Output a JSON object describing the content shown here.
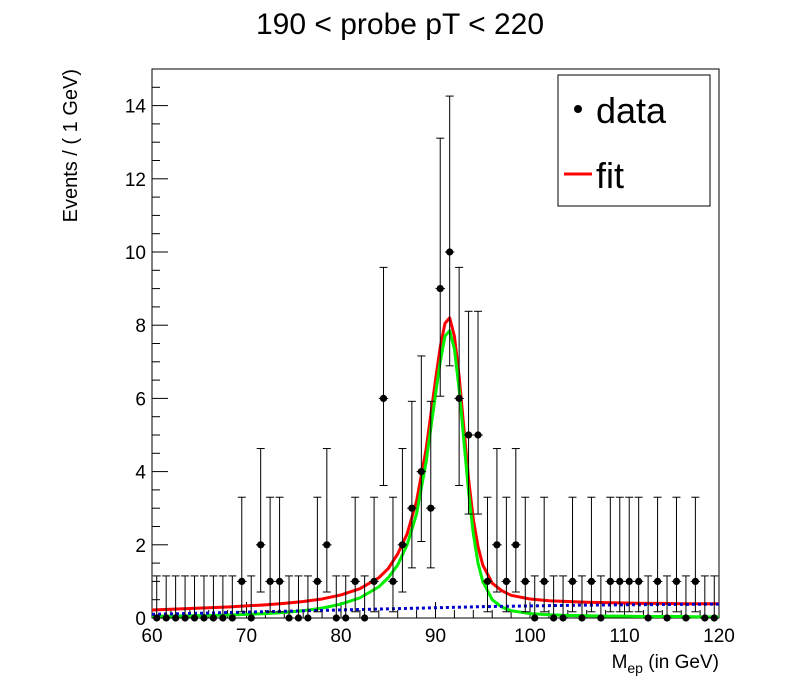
{
  "chart_data": {
    "type": "scatter",
    "title": "190 < probe pT < 220",
    "ylabel": "Events / ( 1 GeV)",
    "xlabel_main": "M",
    "xlabel_sub": "ep",
    "xlabel_suffix": " (in GeV)",
    "xlim": [
      60,
      120
    ],
    "ylim": [
      0,
      15
    ],
    "x_ticks": [
      60,
      70,
      80,
      90,
      100,
      110,
      120
    ],
    "y_ticks": [
      0,
      2,
      4,
      6,
      8,
      10,
      12,
      14
    ],
    "x_tick_labels": [
      "60",
      "70",
      "80",
      "90",
      "100",
      "110",
      "120"
    ],
    "y_tick_labels": [
      "0",
      "2",
      "4",
      "6",
      "8",
      "10",
      "12",
      "14"
    ],
    "legend": {
      "placement": "top-right",
      "entries": [
        {
          "label": "data",
          "marker": "dot"
        },
        {
          "label": "fit",
          "marker": "line",
          "color": "#ff0000"
        }
      ]
    },
    "data_points": {
      "name": "data",
      "x": [
        60.5,
        61.5,
        62.5,
        63.5,
        64.5,
        65.5,
        66.5,
        67.5,
        68.5,
        69.5,
        70.5,
        71.5,
        72.5,
        73.5,
        74.5,
        75.5,
        76.5,
        77.5,
        78.5,
        79.5,
        80.5,
        81.5,
        82.5,
        83.5,
        84.5,
        85.5,
        86.5,
        87.5,
        88.5,
        89.5,
        90.5,
        91.5,
        92.5,
        93.5,
        94.5,
        95.5,
        96.5,
        97.5,
        98.5,
        99.5,
        100.5,
        101.5,
        102.5,
        103.5,
        104.5,
        105.5,
        106.5,
        107.5,
        108.5,
        109.5,
        110.5,
        111.5,
        112.5,
        113.5,
        114.5,
        115.5,
        116.5,
        117.5,
        118.5,
        119.5
      ],
      "y": [
        0,
        0,
        0,
        0,
        0,
        0,
        0,
        0,
        0,
        1,
        0,
        2,
        1,
        1,
        0,
        0,
        0,
        1,
        2,
        0,
        0,
        1,
        0,
        1,
        6,
        1,
        2,
        3,
        4,
        3,
        9,
        10,
        6,
        5,
        5,
        1,
        2,
        1,
        2,
        1,
        0,
        1,
        0,
        0,
        1,
        0,
        1,
        0,
        1,
        1,
        1,
        1,
        0,
        1,
        0,
        1,
        0,
        1,
        0,
        0
      ],
      "err_low": [
        0,
        0,
        0,
        0,
        0,
        0,
        0,
        0,
        0,
        0.83,
        0,
        1.29,
        0.83,
        0.83,
        0,
        0,
        0,
        0.83,
        1.29,
        0,
        0,
        0.83,
        0,
        0.83,
        2.38,
        0.83,
        1.29,
        1.63,
        1.91,
        1.63,
        2.94,
        3.11,
        2.38,
        2.16,
        2.16,
        0.83,
        1.29,
        0.83,
        1.29,
        0.83,
        0,
        0.83,
        0,
        0,
        0.83,
        0,
        0.83,
        0,
        0.83,
        0.83,
        0.83,
        0.83,
        0,
        0.83,
        0,
        0.83,
        0,
        0.83,
        0,
        0
      ],
      "err_high": [
        1.15,
        1.15,
        1.15,
        1.15,
        1.15,
        1.15,
        1.15,
        1.15,
        1.15,
        2.3,
        1.15,
        2.63,
        2.3,
        2.3,
        1.15,
        1.15,
        1.15,
        2.3,
        2.63,
        1.15,
        1.15,
        2.3,
        1.15,
        2.3,
        3.58,
        2.3,
        2.63,
        2.92,
        3.16,
        2.92,
        4.11,
        4.26,
        3.58,
        3.38,
        3.38,
        2.3,
        2.63,
        2.3,
        2.63,
        2.3,
        1.15,
        2.3,
        1.15,
        1.15,
        2.3,
        1.15,
        2.3,
        1.15,
        2.3,
        2.3,
        2.3,
        2.3,
        1.15,
        2.3,
        1.15,
        2.3,
        1.15,
        2.3,
        1.15,
        1.15
      ]
    },
    "curves": [
      {
        "name": "fit",
        "color": "#ff0000",
        "style": "solid",
        "x": [
          60,
          62,
          64,
          66,
          68,
          70,
          72,
          74,
          76,
          78,
          80,
          82,
          84,
          85,
          86,
          87,
          88,
          89,
          90,
          90.5,
          91,
          91.5,
          92,
          92.5,
          93,
          93.5,
          94,
          94.5,
          95,
          96,
          97,
          98,
          100,
          102,
          104,
          106,
          108,
          110,
          112,
          114,
          116,
          118,
          120
        ],
        "y": [
          0.22,
          0.24,
          0.26,
          0.28,
          0.3,
          0.33,
          0.36,
          0.4,
          0.45,
          0.52,
          0.63,
          0.8,
          1.1,
          1.35,
          1.75,
          2.3,
          3.2,
          4.6,
          6.5,
          7.4,
          8.05,
          8.2,
          7.7,
          6.6,
          5.2,
          3.8,
          2.7,
          1.95,
          1.45,
          0.95,
          0.75,
          0.62,
          0.52,
          0.47,
          0.45,
          0.43,
          0.42,
          0.41,
          0.4,
          0.4,
          0.39,
          0.39,
          0.39
        ]
      },
      {
        "name": "",
        "color": "#00ee00",
        "style": "solid",
        "x": [
          60,
          62,
          64,
          66,
          68,
          70,
          72,
          74,
          76,
          78,
          80,
          82,
          84,
          85,
          86,
          87,
          88,
          89,
          90,
          90.5,
          91,
          91.5,
          92,
          92.5,
          93,
          93.5,
          94,
          94.5,
          95,
          96,
          97,
          98,
          100,
          102,
          104,
          106,
          108,
          110,
          112,
          114,
          116,
          118,
          120
        ],
        "y": [
          0.05,
          0.05,
          0.06,
          0.07,
          0.08,
          0.1,
          0.12,
          0.15,
          0.2,
          0.27,
          0.38,
          0.55,
          0.85,
          1.1,
          1.45,
          2.0,
          2.85,
          4.25,
          6.1,
          7.0,
          7.7,
          7.85,
          7.35,
          6.25,
          4.85,
          3.45,
          2.3,
          1.5,
          1.0,
          0.5,
          0.3,
          0.2,
          0.12,
          0.09,
          0.07,
          0.06,
          0.05,
          0.05,
          0.04,
          0.04,
          0.04,
          0.03,
          0.03
        ]
      },
      {
        "name": "",
        "color": "#0000cc",
        "style": "dotted",
        "x": [
          60,
          65,
          70,
          75,
          80,
          85,
          90,
          95,
          100,
          105,
          110,
          115,
          120
        ],
        "y": [
          0.1,
          0.13,
          0.16,
          0.19,
          0.22,
          0.25,
          0.28,
          0.31,
          0.33,
          0.35,
          0.36,
          0.37,
          0.38
        ]
      }
    ]
  }
}
